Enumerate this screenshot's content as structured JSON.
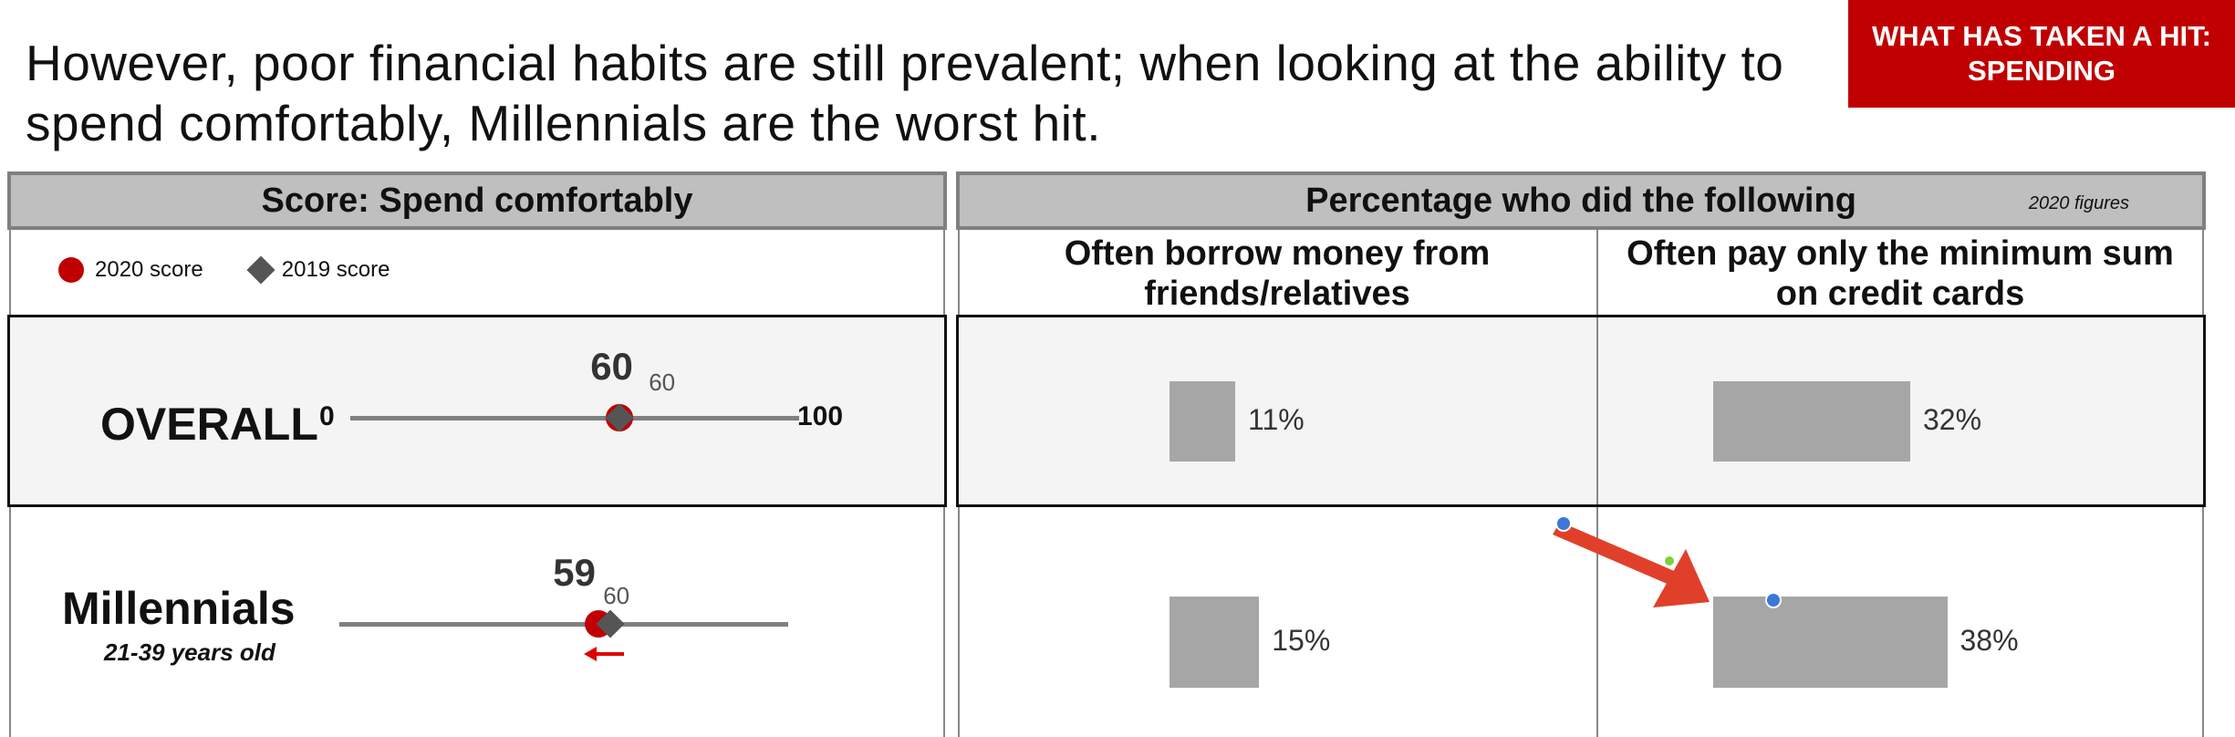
{
  "headline": "However, poor financial habits are still prevalent; when looking at the ability to spend comfortably, Millennials are the worst hit.",
  "badge": {
    "line1": "WHAT HAS TAKEN A HIT:",
    "line2": "SPENDING"
  },
  "left_panel": {
    "title": "Score: Spend comfortably",
    "legend": {
      "score_2020": "2020 score",
      "score_2019": "2019 score"
    },
    "scale_min": "0",
    "scale_max": "100"
  },
  "right_panel": {
    "title": "Percentage who did the following",
    "note": "2020 figures",
    "col1_line1": "Often borrow money from",
    "col1_line2": "friends/relatives",
    "col2_line1": "Often pay only the minimum sum",
    "col2_line2": "on credit cards"
  },
  "colors": {
    "badge": "#c00000",
    "marker_2020": "#c00000",
    "marker_2019": "#555555",
    "bar": "#a6a6a6",
    "annotation_arrow": "#e0402a"
  },
  "chart_data": [
    {
      "type": "scatter",
      "title": "Score: Spend comfortably",
      "xlim": [
        0,
        100
      ],
      "categories": [
        "OVERALL",
        "Millennials"
      ],
      "category_notes": [
        "",
        "21-39 years old"
      ],
      "series": [
        {
          "name": "2020 score",
          "values": [
            60,
            59
          ]
        },
        {
          "name": "2019 score",
          "values": [
            60,
            60
          ]
        }
      ],
      "labels_2020": [
        "60",
        "59"
      ],
      "labels_2019": [
        "60",
        "60"
      ]
    },
    {
      "type": "bar",
      "title": "Percentage who did the following",
      "categories": [
        "OVERALL",
        "Millennials"
      ],
      "series": [
        {
          "name": "Often borrow money from friends/relatives",
          "values": [
            11,
            15
          ]
        },
        {
          "name": "Often pay only the minimum sum on credit cards",
          "values": [
            32,
            38
          ]
        }
      ],
      "value_labels": [
        [
          "11%",
          "15%"
        ],
        [
          "32%",
          "38%"
        ]
      ]
    }
  ]
}
